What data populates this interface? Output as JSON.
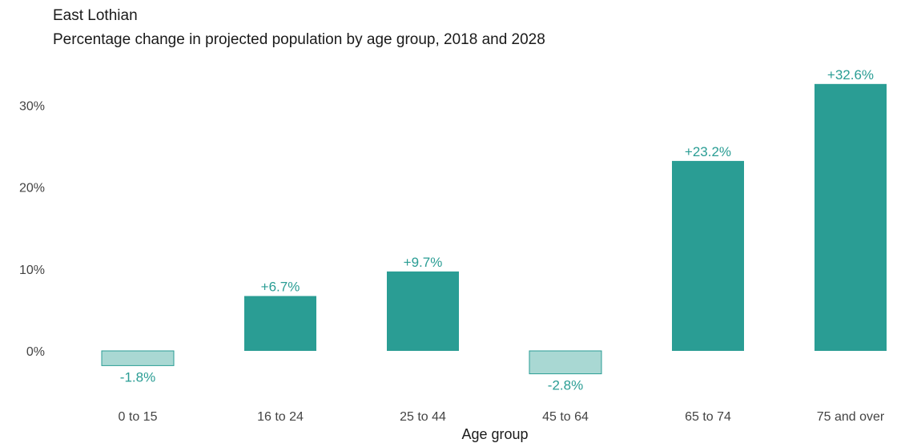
{
  "chart_data": {
    "type": "bar",
    "title": "East Lothian",
    "subtitle": "Percentage change in projected population by age group, 2018 and 2028",
    "xlabel": "Age group",
    "ylabel": "",
    "categories": [
      "0 to 15",
      "16 to 24",
      "25 to 44",
      "45 to 64",
      "65 to 74",
      "75 and over"
    ],
    "values": [
      -1.8,
      6.7,
      9.7,
      -2.8,
      23.2,
      32.6
    ],
    "value_labels": [
      "-1.8%",
      "+6.7%",
      "+9.7%",
      "-2.8%",
      "+23.2%",
      "+32.6%"
    ],
    "yticks": [
      0,
      10,
      20,
      30
    ],
    "ytick_labels": [
      "0%",
      "10%",
      "20%",
      "30%"
    ],
    "ylim": [
      -4,
      34
    ],
    "grid": false,
    "legend": "none",
    "colors": {
      "positive_bar": "#2a9d94",
      "negative_bar": "#a9d8d3",
      "negative_bar_border": "#2a9d94",
      "label_text": "#2a9d94"
    }
  }
}
